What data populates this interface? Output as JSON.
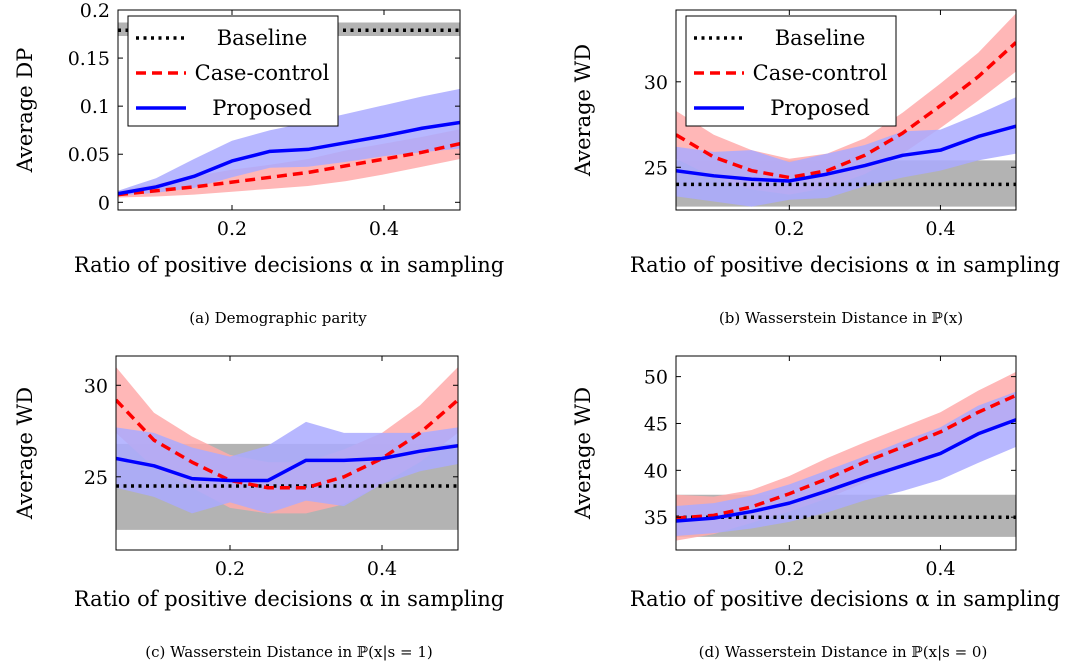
{
  "chart_data": [
    {
      "type": "line",
      "caption": "(a) Demographic parity",
      "ylabel": "Average DP",
      "xlabel": "Ratio of positive decisions α in sampling",
      "xlim": [
        0.05,
        0.5
      ],
      "ylim": [
        -0.008,
        0.2
      ],
      "xticks": [
        0.2,
        0.4
      ],
      "xtick_labels": [
        "0.2",
        "0.4"
      ],
      "yticks": [
        0,
        0.05,
        0.1,
        0.15,
        0.2
      ],
      "ytick_labels": [
        "0",
        "0.05",
        "0.1",
        "0.15",
        "0.2"
      ],
      "legend": {
        "show": true,
        "position": "top-left"
      },
      "series": [
        {
          "name": "Baseline",
          "style": "dotted",
          "color": "#000000",
          "band_color": "#b3b3b3",
          "x": [
            0.05,
            0.5
          ],
          "y": [
            0.179,
            0.179
          ],
          "lower": [
            0.173,
            0.173
          ],
          "upper": [
            0.187,
            0.187
          ]
        },
        {
          "name": "Case-control",
          "style": "dashed",
          "color": "#ff0000",
          "band_color": "#ffaaaa",
          "x": [
            0.05,
            0.1,
            0.15,
            0.2,
            0.25,
            0.3,
            0.35,
            0.4,
            0.45,
            0.5
          ],
          "y": [
            0.008,
            0.012,
            0.016,
            0.021,
            0.026,
            0.031,
            0.038,
            0.045,
            0.052,
            0.061
          ],
          "lower": [
            0.005,
            0.006,
            0.008,
            0.011,
            0.014,
            0.017,
            0.022,
            0.029,
            0.037,
            0.045
          ],
          "upper": [
            0.012,
            0.019,
            0.027,
            0.034,
            0.039,
            0.045,
            0.054,
            0.061,
            0.068,
            0.076
          ]
        },
        {
          "name": "Proposed",
          "style": "solid",
          "color": "#0000ff",
          "band_color": "#aaaaff",
          "x": [
            0.05,
            0.1,
            0.15,
            0.2,
            0.25,
            0.3,
            0.35,
            0.4,
            0.45,
            0.5
          ],
          "y": [
            0.009,
            0.016,
            0.027,
            0.043,
            0.053,
            0.055,
            0.062,
            0.069,
            0.077,
            0.083
          ],
          "lower": [
            0.007,
            0.01,
            0.015,
            0.026,
            0.036,
            0.037,
            0.042,
            0.048,
            0.052,
            0.056
          ],
          "upper": [
            0.012,
            0.025,
            0.045,
            0.064,
            0.075,
            0.083,
            0.092,
            0.101,
            0.11,
            0.118
          ]
        }
      ]
    },
    {
      "type": "line",
      "caption": "(b) Wasserstein Distance in ℙ(x)",
      "ylabel": "Average WD",
      "xlabel": "Ratio of positive decisions α in sampling",
      "xlim": [
        0.05,
        0.5
      ],
      "ylim": [
        22.5,
        34.2
      ],
      "xticks": [
        0.2,
        0.4
      ],
      "xtick_labels": [
        "0.2",
        "0.4"
      ],
      "yticks": [
        25,
        30
      ],
      "ytick_labels": [
        "25",
        "30"
      ],
      "legend": {
        "show": true,
        "position": "top-left"
      },
      "series": [
        {
          "name": "Baseline",
          "style": "dotted",
          "color": "#000000",
          "band_color": "#b3b3b3",
          "x": [
            0.05,
            0.5
          ],
          "y": [
            24,
            24
          ],
          "lower": [
            22.7,
            22.7
          ],
          "upper": [
            25.4,
            25.4
          ]
        },
        {
          "name": "Case-control",
          "style": "dashed",
          "color": "#ff0000",
          "band_color": "#ffaaaa",
          "x": [
            0.05,
            0.1,
            0.15,
            0.2,
            0.25,
            0.3,
            0.35,
            0.4,
            0.45,
            0.5
          ],
          "y": [
            26.9,
            25.6,
            24.8,
            24.4,
            24.8,
            25.7,
            27.0,
            28.6,
            30.3,
            32.3
          ],
          "lower": [
            25.5,
            24.4,
            23.7,
            23.4,
            23.8,
            24.6,
            25.8,
            27.3,
            28.9,
            30.6
          ],
          "upper": [
            28.3,
            26.9,
            26.0,
            25.5,
            25.8,
            26.7,
            28.2,
            29.9,
            31.7,
            34.0
          ]
        },
        {
          "name": "Proposed",
          "style": "solid",
          "color": "#0000ff",
          "band_color": "#aaaaff",
          "x": [
            0.05,
            0.1,
            0.15,
            0.2,
            0.25,
            0.3,
            0.35,
            0.4,
            0.45,
            0.5
          ],
          "y": [
            24.8,
            24.5,
            24.3,
            24.2,
            24.6,
            25.1,
            25.7,
            26.0,
            26.8,
            27.4
          ],
          "lower": [
            23.3,
            23.0,
            22.7,
            23.1,
            23.2,
            23.9,
            24.4,
            24.8,
            25.4,
            25.8
          ],
          "upper": [
            26.2,
            25.9,
            26.0,
            25.3,
            25.8,
            26.3,
            27.1,
            27.2,
            28.1,
            29.1
          ]
        }
      ]
    },
    {
      "type": "line",
      "caption": "(c) Wasserstein Distance in ℙ(x|s = 1)",
      "ylabel": "Average WD",
      "xlabel": "Ratio of positive decisions α in sampling",
      "xlim": [
        0.05,
        0.5
      ],
      "ylim": [
        21.0,
        31.6
      ],
      "xticks": [
        0.2,
        0.4
      ],
      "xtick_labels": [
        "0.2",
        "0.4"
      ],
      "yticks": [
        25,
        30
      ],
      "ytick_labels": [
        "25",
        "30"
      ],
      "legend": {
        "show": false,
        "position": "none"
      },
      "series": [
        {
          "name": "Baseline",
          "style": "dotted",
          "color": "#000000",
          "band_color": "#b3b3b3",
          "x": [
            0.05,
            0.5
          ],
          "y": [
            24.5,
            24.5
          ],
          "lower": [
            22.1,
            22.1
          ],
          "upper": [
            26.8,
            26.8
          ]
        },
        {
          "name": "Case-control",
          "style": "dashed",
          "color": "#ff0000",
          "band_color": "#ffaaaa",
          "x": [
            0.05,
            0.1,
            0.15,
            0.2,
            0.25,
            0.3,
            0.35,
            0.4,
            0.45,
            0.5
          ],
          "y": [
            29.2,
            27.0,
            25.8,
            24.8,
            24.4,
            24.4,
            25.0,
            26.0,
            27.4,
            29.2
          ],
          "lower": [
            27.4,
            25.5,
            24.4,
            23.3,
            23.0,
            23.0,
            23.5,
            24.6,
            25.8,
            27.4
          ],
          "upper": [
            31.0,
            28.5,
            27.2,
            26.2,
            25.8,
            25.8,
            26.5,
            27.4,
            28.9,
            31.0
          ]
        },
        {
          "name": "Proposed",
          "style": "solid",
          "color": "#0000ff",
          "band_color": "#aaaaff",
          "x": [
            0.05,
            0.1,
            0.15,
            0.2,
            0.25,
            0.3,
            0.35,
            0.4,
            0.45,
            0.5
          ],
          "y": [
            26.0,
            25.6,
            24.9,
            24.8,
            24.8,
            25.9,
            25.9,
            26.0,
            26.4,
            26.7
          ],
          "lower": [
            24.4,
            23.9,
            23.0,
            23.6,
            23.0,
            23.7,
            23.4,
            24.6,
            25.3,
            25.7
          ],
          "upper": [
            27.7,
            27.4,
            26.6,
            26.1,
            26.7,
            28.0,
            27.4,
            27.4,
            27.4,
            27.7
          ]
        }
      ]
    },
    {
      "type": "line",
      "caption": "(d) Wasserstein Distance in ℙ(x|s = 0)",
      "ylabel": "Average WD",
      "xlabel": "Ratio of positive decisions α in sampling",
      "xlim": [
        0.05,
        0.5
      ],
      "ylim": [
        31.5,
        52.2
      ],
      "xticks": [
        0.2,
        0.4
      ],
      "xtick_labels": [
        "0.2",
        "0.4"
      ],
      "yticks": [
        35,
        40,
        45,
        50
      ],
      "ytick_labels": [
        "35",
        "40",
        "45",
        "50"
      ],
      "legend": {
        "show": false,
        "position": "none"
      },
      "series": [
        {
          "name": "Baseline",
          "style": "dotted",
          "color": "#000000",
          "band_color": "#b3b3b3",
          "x": [
            0.05,
            0.5
          ],
          "y": [
            35.0,
            35.0
          ],
          "lower": [
            32.9,
            32.9
          ],
          "upper": [
            37.4,
            37.4
          ]
        },
        {
          "name": "Case-control",
          "style": "dashed",
          "color": "#ff0000",
          "band_color": "#ffaaaa",
          "x": [
            0.05,
            0.1,
            0.15,
            0.2,
            0.25,
            0.3,
            0.35,
            0.4,
            0.45,
            0.5
          ],
          "y": [
            34.9,
            35.2,
            36.1,
            37.5,
            39.1,
            40.9,
            42.5,
            44.1,
            46.2,
            48.0
          ],
          "lower": [
            32.5,
            33.2,
            34.4,
            35.6,
            37.0,
            38.7,
            40.4,
            42.1,
            44.0,
            45.6
          ],
          "upper": [
            37.4,
            37.2,
            37.9,
            39.4,
            41.3,
            43.0,
            44.6,
            46.2,
            48.5,
            50.5
          ]
        },
        {
          "name": "Proposed",
          "style": "solid",
          "color": "#0000ff",
          "band_color": "#aaaaff",
          "x": [
            0.05,
            0.1,
            0.15,
            0.2,
            0.25,
            0.3,
            0.35,
            0.4,
            0.45,
            0.5
          ],
          "y": [
            34.6,
            34.9,
            35.6,
            36.5,
            37.8,
            39.2,
            40.5,
            41.8,
            43.9,
            45.4
          ],
          "lower": [
            33.0,
            33.3,
            33.8,
            34.5,
            35.5,
            36.8,
            37.8,
            39.0,
            40.8,
            42.5
          ],
          "upper": [
            36.2,
            36.5,
            37.3,
            38.5,
            40.0,
            41.5,
            43.1,
            44.6,
            46.9,
            48.4
          ]
        }
      ]
    }
  ]
}
